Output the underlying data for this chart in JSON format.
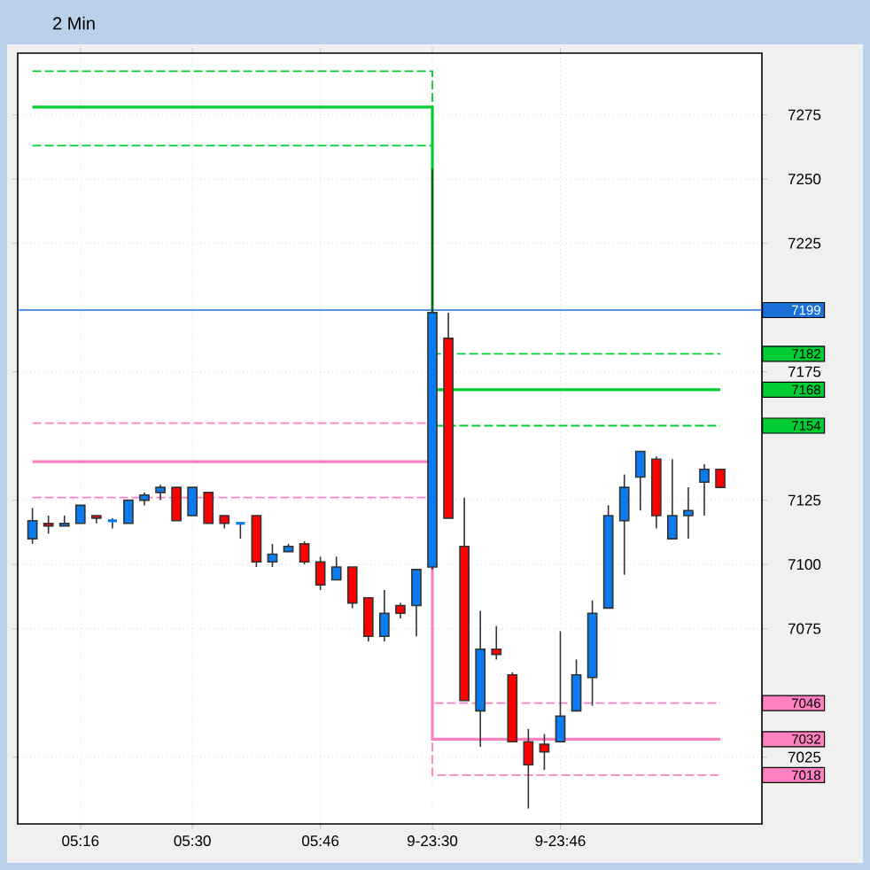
{
  "chart_data": {
    "type": "candlestick",
    "title": "2 Min",
    "categories": [
      null,
      null,
      null,
      "05:16",
      null,
      null,
      null,
      null,
      null,
      null,
      "05:30",
      null,
      null,
      null,
      null,
      null,
      null,
      null,
      "05:46",
      null,
      null,
      null,
      null,
      null,
      null,
      "9-23:30",
      null,
      null,
      null,
      null,
      null,
      null,
      null,
      "9-23:46",
      null,
      null,
      null,
      null,
      null,
      null,
      null,
      null,
      null,
      null
    ],
    "ohlc": [
      [
        7110,
        7122,
        7108,
        7117
      ],
      [
        7116,
        7119,
        7112,
        7115
      ],
      [
        7115,
        7119,
        7115,
        7116
      ],
      [
        7116,
        7123,
        7116,
        7123
      ],
      [
        7119,
        7119,
        7116,
        7118
      ],
      [
        7117,
        7118,
        7114,
        7117
      ],
      [
        7116,
        7125,
        7116,
        7125
      ],
      [
        7125,
        7128,
        7123,
        7127
      ],
      [
        7128,
        7131,
        7125,
        7130
      ],
      [
        7130,
        7130,
        7117,
        7117
      ],
      [
        7119,
        7130,
        7119,
        7130
      ],
      [
        7128,
        7128,
        7116,
        7116
      ],
      [
        7119,
        7119,
        7114,
        7116
      ],
      [
        7116,
        7116,
        7110,
        7116
      ],
      [
        7119,
        7119,
        7099,
        7101
      ],
      [
        7101,
        7108,
        7099,
        7104
      ],
      [
        7105,
        7108,
        7105,
        7107
      ],
      [
        7108,
        7109,
        7100,
        7101
      ],
      [
        7101,
        7103,
        7090,
        7092
      ],
      [
        7094,
        7103,
        7094,
        7099
      ],
      [
        7099,
        7099,
        7083,
        7085
      ],
      [
        7087,
        7087,
        7070,
        7072
      ],
      [
        7072,
        7090,
        7070,
        7081
      ],
      [
        7084,
        7085,
        7079,
        7081
      ],
      [
        7084,
        7098,
        7072,
        7098
      ],
      [
        7099,
        7254,
        7098,
        7198
      ],
      [
        7188,
        7198,
        7118,
        7118
      ],
      [
        7107,
        7126,
        7047,
        7047
      ],
      [
        7043,
        7082,
        7029,
        7067
      ],
      [
        7067,
        7076,
        7063,
        7065
      ],
      [
        7057,
        7058,
        7031,
        7031
      ],
      [
        7031,
        7036,
        7005,
        7022
      ],
      [
        7030,
        7034,
        7020,
        7027
      ],
      [
        7031,
        7074,
        7031,
        7041
      ],
      [
        7043,
        7063,
        7043,
        7057
      ],
      [
        7056,
        7086,
        7045,
        7081
      ],
      [
        7083,
        7123,
        7083,
        7119
      ],
      [
        7117,
        7135,
        7096,
        7130
      ],
      [
        7134,
        7144,
        7121,
        7144
      ],
      [
        7141,
        7142,
        7114,
        7119
      ],
      [
        7110,
        7141,
        7110,
        7119
      ],
      [
        7119,
        7130,
        7110,
        7121
      ],
      [
        7132,
        7139,
        7119,
        7137
      ],
      [
        7137,
        7137,
        7130,
        7130
      ]
    ],
    "colors": [
      "#0a7cf0",
      "#ff0000",
      "#0a7cf0",
      "#0a7cf0",
      "#ff0000",
      "#0a7cf0",
      "#0a7cf0",
      "#0a7cf0",
      "#0a7cf0",
      "#ff0000",
      "#0a7cf0",
      "#ff0000",
      "#ff0000",
      "#0a7cf0",
      "#ff0000",
      "#0a7cf0",
      "#0a7cf0",
      "#ff0000",
      "#ff0000",
      "#0a7cf0",
      "#ff0000",
      "#ff0000",
      "#0a7cf0",
      "#ff0000",
      "#0a7cf0",
      "#0a7cf0",
      "#ff0000",
      "#ff0000",
      "#0a7cf0",
      "#ff0000",
      "#ff0000",
      "#ff0000",
      "#ff0000",
      "#0a7cf0",
      "#0a7cf0",
      "#0a7cf0",
      "#0a7cf0",
      "#0a7cf0",
      "#0a7cf0",
      "#ff0000",
      "#0a7cf0",
      "#0a7cf0",
      "#0a7cf0",
      "#ff0000"
    ],
    "series": [
      {
        "type": "step",
        "color": "#00cc33",
        "line_style": "dashed",
        "values": [
          7292,
          7292,
          7292,
          7292,
          7292,
          7292,
          7292,
          7292,
          7292,
          7292,
          7292,
          7292,
          7292,
          7292,
          7292,
          7292,
          7292,
          7292,
          7292,
          7292,
          7292,
          7292,
          7292,
          7292,
          7292,
          7182,
          null,
          7182,
          7182,
          7182,
          7182,
          7182,
          7182,
          7182,
          7182,
          7182,
          7182,
          7182,
          7182,
          7182,
          7182,
          7182,
          7182,
          7182
        ]
      },
      {
        "type": "step",
        "color": "#00cc33",
        "line_style": "solid",
        "values": [
          7278,
          7278,
          7278,
          7278,
          7278,
          7278,
          7278,
          7278,
          7278,
          7278,
          7278,
          7278,
          7278,
          7278,
          7278,
          7278,
          7278,
          7278,
          7278,
          7278,
          7278,
          7278,
          7278,
          7278,
          7278,
          7168,
          7168,
          7168,
          7168,
          7168,
          7168,
          7168,
          7168,
          7168,
          7168,
          7168,
          7168,
          7168,
          7168,
          7168,
          7168,
          7168,
          7168,
          7168
        ]
      },
      {
        "type": "step",
        "color": "#00cc33",
        "line_style": "dashed",
        "values": [
          7263,
          7263,
          7263,
          7263,
          7263,
          7263,
          7263,
          7263,
          7263,
          7263,
          7263,
          7263,
          7263,
          7263,
          7263,
          7263,
          7263,
          7263,
          7263,
          7263,
          7263,
          7263,
          7263,
          7263,
          7263,
          7154,
          7154,
          7154,
          7154,
          7154,
          7154,
          7154,
          7154,
          7154,
          7154,
          7154,
          7154,
          7154,
          7154,
          7154,
          7154,
          7154,
          7154,
          7154
        ]
      },
      {
        "type": "step",
        "color": "#ff80c0",
        "line_style": "dashed",
        "values": [
          7155,
          7155,
          7155,
          7155,
          7155,
          7155,
          7155,
          7155,
          7155,
          7155,
          7155,
          7155,
          7155,
          7155,
          7155,
          7155,
          7155,
          7155,
          7155,
          7155,
          7155,
          7155,
          7155,
          7155,
          7155,
          7046,
          7046,
          7046,
          7046,
          7046,
          7046,
          7046,
          7046,
          7046,
          7046,
          7046,
          7046,
          7046,
          7046,
          7046,
          7046,
          7046,
          7046,
          7046
        ]
      },
      {
        "type": "step",
        "color": "#ff80c0",
        "line_style": "solid",
        "values": [
          7140,
          7140,
          7140,
          7140,
          7140,
          7140,
          7140,
          7140,
          7140,
          7140,
          7140,
          7140,
          7140,
          7140,
          7140,
          7140,
          7140,
          7140,
          7140,
          7140,
          7140,
          7140,
          7140,
          7140,
          7140,
          7032,
          7032,
          7032,
          7032,
          7032,
          7032,
          7032,
          7032,
          7032,
          7032,
          7032,
          7032,
          7032,
          7032,
          7032,
          7032,
          7032,
          7032,
          7032
        ]
      },
      {
        "type": "step",
        "color": "#ff80c0",
        "line_style": "dashed",
        "values": [
          7126,
          7126,
          7126,
          7126,
          7126,
          7126,
          7126,
          7126,
          7126,
          7126,
          7126,
          7126,
          7126,
          7126,
          7126,
          7126,
          7126,
          7126,
          7126,
          7126,
          7126,
          7126,
          7126,
          7126,
          7126,
          7018,
          7018,
          7018,
          7018,
          7018,
          7018,
          7018,
          7018,
          7018,
          7018,
          7018,
          7018,
          7018,
          7018,
          7018,
          7018,
          7018,
          7018,
          7018
        ]
      }
    ],
    "annotations": [
      "7182",
      "7168",
      "7154",
      "7046",
      "7032",
      "7018"
    ],
    "ref_lines": [
      {
        "axis": "y",
        "value": 7199,
        "label": "7199",
        "color": "#1a6fd8"
      }
    ],
    "ylim": [
      6999,
      7299
    ],
    "yticks": [
      7025,
      7075,
      7100,
      7125,
      7175,
      7225,
      7250,
      7275
    ],
    "grid": true,
    "marker": "none"
  }
}
